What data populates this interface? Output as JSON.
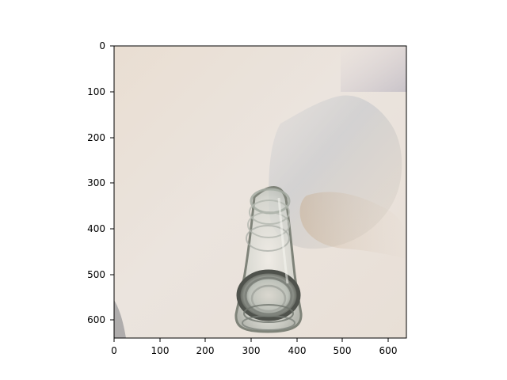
{
  "image": {
    "subject": "glass-bottle",
    "x_ticks": [
      "0",
      "100",
      "200",
      "300",
      "400",
      "500",
      "600"
    ],
    "y_ticks": [
      "0",
      "100",
      "200",
      "300",
      "400",
      "500",
      "600"
    ],
    "colors": {
      "wall": "#ebe3dc",
      "wall_top": "#e7ddd4",
      "corner_shadow": "#c8c2c7",
      "glass_shadow": "#b9bec3",
      "amber_shadow": "#c3a98b",
      "glass_edge": "#4f524c"
    }
  }
}
